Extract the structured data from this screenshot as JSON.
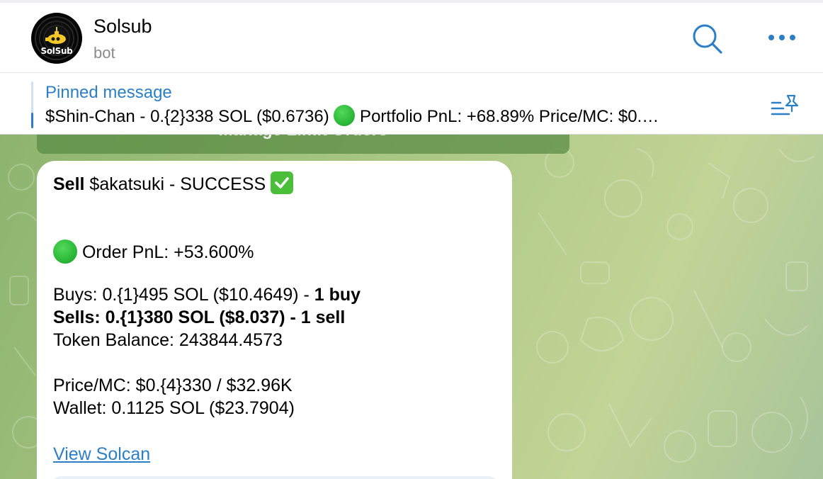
{
  "header": {
    "title": "Solsub",
    "subtitle": "bot",
    "avatar_text": "SolSub"
  },
  "pinned": {
    "label": "Pinned message",
    "text_before": "$Shin-Chan - 0.{2}338 SOL ($0.6736) ",
    "text_after": " Portfolio PnL: +68.89%  Price/MC: $0.…"
  },
  "keyboard": {
    "button_label": "Manage Limit Orders"
  },
  "message": {
    "title_bold": "Sell",
    "title_rest": " $akatsuki - SUCCESS ",
    "order_pnl": " Order PnL: +53.600%",
    "buys_text": "Buys: 0.{1}495 SOL ($10.4649) - ",
    "buys_bold": "1 buy",
    "sells_text": "Sells: 0.{1}380 SOL ($8.037) - 1 sell",
    "token_balance": "Token Balance: 243844.4573",
    "price_mc": "Price/MC: $0.{4}330 / $32.96K",
    "wallet": "Wallet: 0.1125 SOL ($23.7904)",
    "link": "View Solcan"
  },
  "colors": {
    "accent": "#2b7fc7",
    "status_green": "#2ebc3a",
    "check_green": "#4cbf3a"
  },
  "icons": {
    "search": "search-icon",
    "more": "more-icon",
    "pin_list": "pin-list-icon",
    "check": "check-mark-icon",
    "green_circle": "green-circle-icon"
  }
}
